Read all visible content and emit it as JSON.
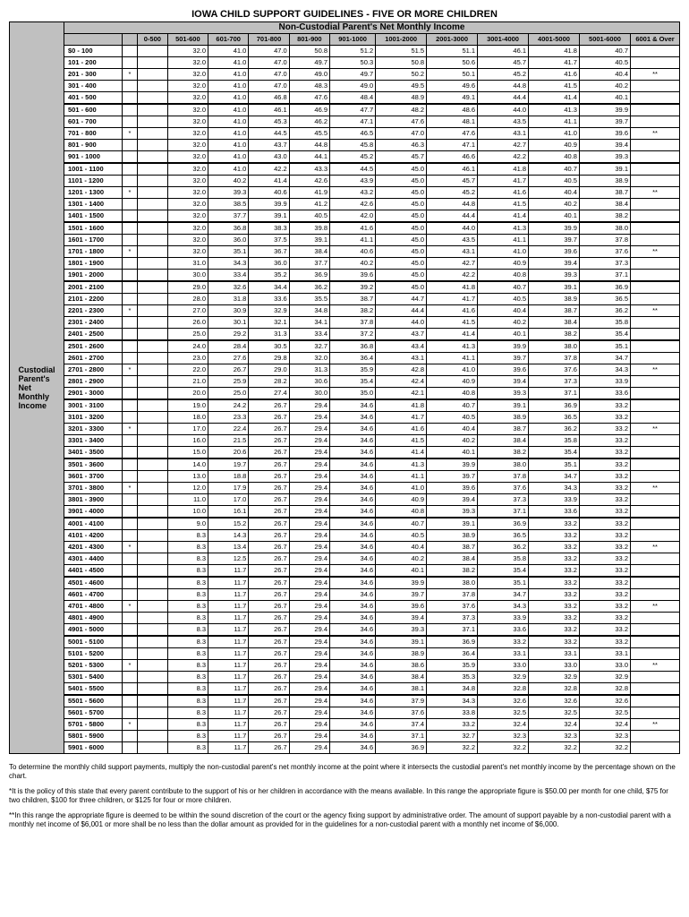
{
  "title": "IOWA CHILD SUPPORT GUIDELINES - FIVE OR MORE CHILDREN",
  "subtitle": "Non-Custodial Parent's Net Monthly Income",
  "sideLabel": "Custodial Parent's Net Monthly Income",
  "columns": [
    "0-500",
    "501-600",
    "601-700",
    "701-800",
    "801-900",
    "901-1000",
    "1001-2000",
    "2001-3000",
    "3001-4000",
    "4001-5000",
    "5001-6000",
    "6001 & Over"
  ],
  "rowLabels": [
    "$0   -   100",
    "101  -   200",
    "201  -   300",
    "301  -   400",
    "401  -   500",
    "501  -   600",
    "601  -   700",
    "701  -   800",
    "801  -   900",
    "901  - 1000",
    "1001 - 1100",
    "1101 - 1200",
    "1201 - 1300",
    "1301 - 1400",
    "1401 - 1500",
    "1501 - 1600",
    "1601 - 1700",
    "1701 - 1800",
    "1801 - 1900",
    "1901 - 2000",
    "2001 - 2100",
    "2101 - 2200",
    "2201 - 2300",
    "2301 - 2400",
    "2401 - 2500",
    "2501 - 2600",
    "2601 - 2700",
    "2701 - 2800",
    "2801 - 2900",
    "2901 - 3000",
    "3001 - 3100",
    "3101 - 3200",
    "3201 - 3300",
    "3301 - 3400",
    "3401 - 3500",
    "3501 - 3600",
    "3601 - 3700",
    "3701 - 3800",
    "3801 - 3900",
    "3901 - 4000",
    "4001 - 4100",
    "4101 - 4200",
    "4201 - 4300",
    "4301 - 4400",
    "4401 - 4500",
    "4501 - 4600",
    "4601 - 4700",
    "4701 - 4800",
    "4801 - 4900",
    "4901 - 5000",
    "5001 - 5100",
    "5101 - 5200",
    "5201 - 5300",
    "5301 - 5400",
    "5401 - 5500",
    "5501 - 5600",
    "5601 - 5700",
    "5701 - 5800",
    "5801 - 5900",
    "5901 - 6000"
  ],
  "starLeft": [
    "",
    "",
    "*",
    "",
    "",
    "",
    "",
    "*",
    "",
    "",
    "",
    "",
    "*",
    "",
    "",
    "",
    "",
    "*",
    "",
    "",
    "",
    "",
    "*",
    "",
    "",
    "",
    "",
    "*",
    "",
    "",
    "",
    "",
    "*",
    "",
    "",
    "",
    "",
    "*",
    "",
    "",
    "",
    "",
    "*",
    "",
    "",
    "",
    "",
    "*",
    "",
    "",
    "",
    "",
    "*",
    "",
    "",
    "",
    "",
    "*",
    "",
    ""
  ],
  "starRight": [
    "",
    "",
    "**",
    "",
    "",
    "",
    "",
    "**",
    "",
    "",
    "",
    "",
    "**",
    "",
    "",
    "",
    "",
    "**",
    "",
    "",
    "",
    "",
    "**",
    "",
    "",
    "",
    "",
    "**",
    "",
    "",
    "",
    "",
    "**",
    "",
    "",
    "",
    "",
    "**",
    "",
    "",
    "",
    "",
    "**",
    "",
    "",
    "",
    "",
    "**",
    "",
    "",
    "",
    "",
    "**",
    "",
    "",
    "",
    "",
    "**",
    "",
    ""
  ],
  "data": [
    [
      "32.0",
      "41.0",
      "47.0",
      "50.8",
      "51.2",
      "51.5",
      "51.1",
      "46.1",
      "41.8",
      "40.7"
    ],
    [
      "32.0",
      "41.0",
      "47.0",
      "49.7",
      "50.3",
      "50.8",
      "50.6",
      "45.7",
      "41.7",
      "40.5"
    ],
    [
      "32.0",
      "41.0",
      "47.0",
      "49.0",
      "49.7",
      "50.2",
      "50.1",
      "45.2",
      "41.6",
      "40.4"
    ],
    [
      "32.0",
      "41.0",
      "47.0",
      "48.3",
      "49.0",
      "49.5",
      "49.6",
      "44.8",
      "41.5",
      "40.2"
    ],
    [
      "32.0",
      "41.0",
      "46.8",
      "47.6",
      "48.4",
      "48.9",
      "49.1",
      "44.4",
      "41.4",
      "40.1"
    ],
    [
      "32.0",
      "41.0",
      "46.1",
      "46.9",
      "47.7",
      "48.2",
      "48.6",
      "44.0",
      "41.3",
      "39.9"
    ],
    [
      "32.0",
      "41.0",
      "45.3",
      "46.2",
      "47.1",
      "47.6",
      "48.1",
      "43.5",
      "41.1",
      "39.7"
    ],
    [
      "32.0",
      "41.0",
      "44.5",
      "45.5",
      "46.5",
      "47.0",
      "47.6",
      "43.1",
      "41.0",
      "39.6"
    ],
    [
      "32.0",
      "41.0",
      "43.7",
      "44.8",
      "45.8",
      "46.3",
      "47.1",
      "42.7",
      "40.9",
      "39.4"
    ],
    [
      "32.0",
      "41.0",
      "43.0",
      "44.1",
      "45.2",
      "45.7",
      "46.6",
      "42.2",
      "40.8",
      "39.3"
    ],
    [
      "32.0",
      "41.0",
      "42.2",
      "43.3",
      "44.5",
      "45.0",
      "46.1",
      "41.8",
      "40.7",
      "39.1"
    ],
    [
      "32.0",
      "40.2",
      "41.4",
      "42.6",
      "43.9",
      "45.0",
      "45.7",
      "41.7",
      "40.5",
      "38.9"
    ],
    [
      "32.0",
      "39.3",
      "40.6",
      "41.9",
      "43.2",
      "45.0",
      "45.2",
      "41.6",
      "40.4",
      "38.7"
    ],
    [
      "32.0",
      "38.5",
      "39.9",
      "41.2",
      "42.6",
      "45.0",
      "44.8",
      "41.5",
      "40.2",
      "38.4"
    ],
    [
      "32.0",
      "37.7",
      "39.1",
      "40.5",
      "42.0",
      "45.0",
      "44.4",
      "41.4",
      "40.1",
      "38.2"
    ],
    [
      "32.0",
      "36.8",
      "38.3",
      "39.8",
      "41.6",
      "45.0",
      "44.0",
      "41.3",
      "39.9",
      "38.0"
    ],
    [
      "32.0",
      "36.0",
      "37.5",
      "39.1",
      "41.1",
      "45.0",
      "43.5",
      "41.1",
      "39.7",
      "37.8"
    ],
    [
      "32.0",
      "35.1",
      "36.7",
      "38.4",
      "40.6",
      "45.0",
      "43.1",
      "41.0",
      "39.6",
      "37.6"
    ],
    [
      "31.0",
      "34.3",
      "36.0",
      "37.7",
      "40.2",
      "45.0",
      "42.7",
      "40.9",
      "39.4",
      "37.3"
    ],
    [
      "30.0",
      "33.4",
      "35.2",
      "36.9",
      "39.6",
      "45.0",
      "42.2",
      "40.8",
      "39.3",
      "37.1"
    ],
    [
      "29.0",
      "32.6",
      "34.4",
      "36.2",
      "39.2",
      "45.0",
      "41.8",
      "40.7",
      "39.1",
      "36.9"
    ],
    [
      "28.0",
      "31.8",
      "33.6",
      "35.5",
      "38.7",
      "44.7",
      "41.7",
      "40.5",
      "38.9",
      "36.5"
    ],
    [
      "27.0",
      "30.9",
      "32.9",
      "34.8",
      "38.2",
      "44.4",
      "41.6",
      "40.4",
      "38.7",
      "36.2"
    ],
    [
      "26.0",
      "30.1",
      "32.1",
      "34.1",
      "37.8",
      "44.0",
      "41.5",
      "40.2",
      "38.4",
      "35.8"
    ],
    [
      "25.0",
      "29.2",
      "31.3",
      "33.4",
      "37.2",
      "43.7",
      "41.4",
      "40.1",
      "38.2",
      "35.4"
    ],
    [
      "24.0",
      "28.4",
      "30.5",
      "32.7",
      "36.8",
      "43.4",
      "41.3",
      "39.9",
      "38.0",
      "35.1"
    ],
    [
      "23.0",
      "27.6",
      "29.8",
      "32.0",
      "36.4",
      "43.1",
      "41.1",
      "39.7",
      "37.8",
      "34.7"
    ],
    [
      "22.0",
      "26.7",
      "29.0",
      "31.3",
      "35.9",
      "42.8",
      "41.0",
      "39.6",
      "37.6",
      "34.3"
    ],
    [
      "21.0",
      "25.9",
      "28.2",
      "30.6",
      "35.4",
      "42.4",
      "40.9",
      "39.4",
      "37.3",
      "33.9"
    ],
    [
      "20.0",
      "25.0",
      "27.4",
      "30.0",
      "35.0",
      "42.1",
      "40.8",
      "39.3",
      "37.1",
      "33.6"
    ],
    [
      "19.0",
      "24.2",
      "26.7",
      "29.4",
      "34.6",
      "41.8",
      "40.7",
      "39.1",
      "36.9",
      "33.2"
    ],
    [
      "18.0",
      "23.3",
      "26.7",
      "29.4",
      "34.6",
      "41.7",
      "40.5",
      "38.9",
      "36.5",
      "33.2"
    ],
    [
      "17.0",
      "22.4",
      "26.7",
      "29.4",
      "34.6",
      "41.6",
      "40.4",
      "38.7",
      "36.2",
      "33.2"
    ],
    [
      "16.0",
      "21.5",
      "26.7",
      "29.4",
      "34.6",
      "41.5",
      "40.2",
      "38.4",
      "35.8",
      "33.2"
    ],
    [
      "15.0",
      "20.6",
      "26.7",
      "29.4",
      "34.6",
      "41.4",
      "40.1",
      "38.2",
      "35.4",
      "33.2"
    ],
    [
      "14.0",
      "19.7",
      "26.7",
      "29.4",
      "34.6",
      "41.3",
      "39.9",
      "38.0",
      "35.1",
      "33.2"
    ],
    [
      "13.0",
      "18.8",
      "26.7",
      "29.4",
      "34.6",
      "41.1",
      "39.7",
      "37.8",
      "34.7",
      "33.2"
    ],
    [
      "12.0",
      "17.9",
      "26.7",
      "29.4",
      "34.6",
      "41.0",
      "39.6",
      "37.6",
      "34.3",
      "33.2"
    ],
    [
      "11.0",
      "17.0",
      "26.7",
      "29.4",
      "34.6",
      "40.9",
      "39.4",
      "37.3",
      "33.9",
      "33.2"
    ],
    [
      "10.0",
      "16.1",
      "26.7",
      "29.4",
      "34.6",
      "40.8",
      "39.3",
      "37.1",
      "33.6",
      "33.2"
    ],
    [
      "9.0",
      "15.2",
      "26.7",
      "29.4",
      "34.6",
      "40.7",
      "39.1",
      "36.9",
      "33.2",
      "33.2"
    ],
    [
      "8.3",
      "14.3",
      "26.7",
      "29.4",
      "34.6",
      "40.5",
      "38.9",
      "36.5",
      "33.2",
      "33.2"
    ],
    [
      "8.3",
      "13.4",
      "26.7",
      "29.4",
      "34.6",
      "40.4",
      "38.7",
      "36.2",
      "33.2",
      "33.2"
    ],
    [
      "8.3",
      "12.5",
      "26.7",
      "29.4",
      "34.6",
      "40.2",
      "38.4",
      "35.8",
      "33.2",
      "33.2"
    ],
    [
      "8.3",
      "11.7",
      "26.7",
      "29.4",
      "34.6",
      "40.1",
      "38.2",
      "35.4",
      "33.2",
      "33.2"
    ],
    [
      "8.3",
      "11.7",
      "26.7",
      "29.4",
      "34.6",
      "39.9",
      "38.0",
      "35.1",
      "33.2",
      "33.2"
    ],
    [
      "8.3",
      "11.7",
      "26.7",
      "29.4",
      "34.6",
      "39.7",
      "37.8",
      "34.7",
      "33.2",
      "33.2"
    ],
    [
      "8.3",
      "11.7",
      "26.7",
      "29.4",
      "34.6",
      "39.6",
      "37.6",
      "34.3",
      "33.2",
      "33.2"
    ],
    [
      "8.3",
      "11.7",
      "26.7",
      "29.4",
      "34.6",
      "39.4",
      "37.3",
      "33.9",
      "33.2",
      "33.2"
    ],
    [
      "8.3",
      "11.7",
      "26.7",
      "29.4",
      "34.6",
      "39.3",
      "37.1",
      "33.6",
      "33.2",
      "33.2"
    ],
    [
      "8.3",
      "11.7",
      "26.7",
      "29.4",
      "34.6",
      "39.1",
      "36.9",
      "33.2",
      "33.2",
      "33.2"
    ],
    [
      "8.3",
      "11.7",
      "26.7",
      "29.4",
      "34.6",
      "38.9",
      "36.4",
      "33.1",
      "33.1",
      "33.1"
    ],
    [
      "8.3",
      "11.7",
      "26.7",
      "29.4",
      "34.6",
      "38.6",
      "35.9",
      "33.0",
      "33.0",
      "33.0"
    ],
    [
      "8.3",
      "11.7",
      "26.7",
      "29.4",
      "34.6",
      "38.4",
      "35.3",
      "32.9",
      "32.9",
      "32.9"
    ],
    [
      "8.3",
      "11.7",
      "26.7",
      "29.4",
      "34.6",
      "38.1",
      "34.8",
      "32.8",
      "32.8",
      "32.8"
    ],
    [
      "8.3",
      "11.7",
      "26.7",
      "29.4",
      "34.6",
      "37.9",
      "34.3",
      "32.6",
      "32.6",
      "32.6"
    ],
    [
      "8.3",
      "11.7",
      "26.7",
      "29.4",
      "34.6",
      "37.6",
      "33.8",
      "32.5",
      "32.5",
      "32.5"
    ],
    [
      "8.3",
      "11.7",
      "26.7",
      "29.4",
      "34.6",
      "37.4",
      "33.2",
      "32.4",
      "32.4",
      "32.4"
    ],
    [
      "8.3",
      "11.7",
      "26.7",
      "29.4",
      "34.6",
      "37.1",
      "32.7",
      "32.3",
      "32.3",
      "32.3"
    ],
    [
      "8.3",
      "11.7",
      "26.7",
      "29.4",
      "34.6",
      "36.9",
      "32.2",
      "32.2",
      "32.2",
      "32.2"
    ]
  ],
  "footnote1": "To determine the monthly child support payments, multiply the non-custodial parent's net monthly income at the point where it intersects the custodial parent's net monthly income by the percentage shown on the chart.",
  "footnote2": "*It is the policy of this state that every parent contribute to the support of his or her children in accordance with the means available. In this range the appropriate figure is $50.00 per month for one child, $75 for two children, $100 for three children, or $125 for four or more children.",
  "footnote3": "**In this range the appropriate figure is deemed to be within the sound discretion of the court or the agency fixing support by administrative order. The amount of support payable by a non-custodial parent with a monthly net income of $6,001 or more shall be no less than the dollar amount as provided for in the guidelines for a non-custodial parent with a monthly net income of $6,000."
}
